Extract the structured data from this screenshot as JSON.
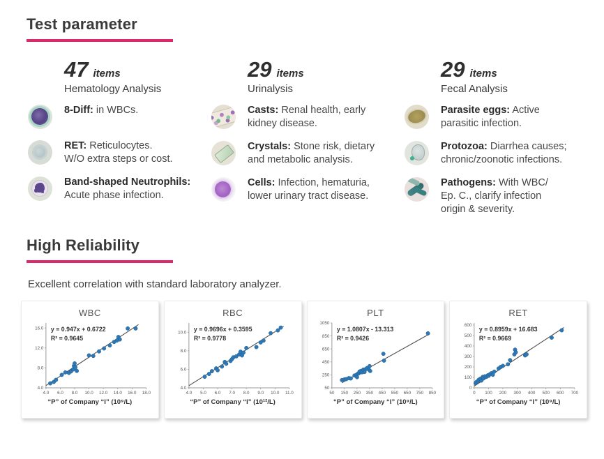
{
  "accent_color": "#DB2A6B",
  "point_color": "#2E78B5",
  "test_parameter": {
    "title": "Test parameter",
    "columns": [
      {
        "count": "47",
        "count_unit": "items",
        "subtitle": "Hematology Analysis",
        "items": [
          {
            "icon": "8diff-cell-icon",
            "term": "8-Diff",
            "desc": "in WBCs."
          },
          {
            "icon": "reticulocyte-cell-icon",
            "term": "RET",
            "desc": "Reticulocytes.\nW/O extra steps or cost."
          },
          {
            "icon": "band-neutrophil-icon",
            "term": "Band-shaped Neutrophils",
            "desc": "\nAcute phase infection."
          }
        ]
      },
      {
        "count": "29",
        "count_unit": "items",
        "subtitle": "Urinalysis",
        "items": [
          {
            "icon": "urinary-cast-icon",
            "term": "Casts",
            "desc": "Renal health, early\nkidney disease."
          },
          {
            "icon": "crystal-icon",
            "term": "Crystals",
            "desc": "Stone risk, dietary\nand metabolic analysis."
          },
          {
            "icon": "urine-cells-icon",
            "term": "Cells",
            "desc": "Infection, hematuria,\nlower urinary tract disease."
          }
        ]
      },
      {
        "count": "29",
        "count_unit": "items",
        "subtitle": "Fecal Analysis",
        "items": [
          {
            "icon": "parasite-egg-icon",
            "term": "Parasite eggs",
            "desc": "Active\nparasitic infection."
          },
          {
            "icon": "protozoa-icon",
            "term": "Protozoa",
            "desc": "Diarrhea causes;\nchronic/zoonotic infections."
          },
          {
            "icon": "pathogen-icon",
            "term": "Pathogens",
            "desc": "With WBC/\nEp. C., clarify infection\norigin & severity."
          }
        ]
      }
    ]
  },
  "high_reliability": {
    "title": "High Reliability",
    "subtitle": "Excellent correlation with standard laboratory analyzer."
  },
  "chart_data": [
    {
      "type": "scatter",
      "name": "WBC",
      "title": "WBC",
      "equation": "y = 0.947x + 0.6722",
      "r_squared": "R² = 0.9645",
      "xlabel": "“P” of Company “I” (10⁹/L)",
      "xlim": [
        4,
        18
      ],
      "ylim": [
        4,
        17
      ],
      "x_ticks": [
        4,
        6,
        8,
        10,
        12,
        14,
        16,
        18
      ],
      "y_ticks": [
        4,
        8,
        12,
        16
      ],
      "tick_decimals": 1,
      "slope": 0.947,
      "intercept": 0.6722,
      "trend_x": [
        4.0,
        16.9
      ],
      "grid": false,
      "legend": false,
      "points": [
        [
          4.6,
          4.9
        ],
        [
          5.1,
          5.2
        ],
        [
          5.4,
          5.6
        ],
        [
          6.2,
          6.6
        ],
        [
          6.7,
          7.1
        ],
        [
          7.2,
          7.0
        ],
        [
          7.5,
          7.3
        ],
        [
          7.8,
          7.7
        ],
        [
          7.9,
          8.4
        ],
        [
          8.0,
          8.9
        ],
        [
          8.1,
          8.1
        ],
        [
          8.3,
          7.4
        ],
        [
          10.0,
          10.5
        ],
        [
          10.6,
          10.4
        ],
        [
          11.4,
          11.3
        ],
        [
          12.1,
          11.9
        ],
        [
          12.9,
          12.5
        ],
        [
          13.5,
          13.2
        ],
        [
          13.9,
          13.5
        ],
        [
          14.1,
          14.2
        ],
        [
          14.3,
          13.7
        ],
        [
          15.4,
          15.9
        ],
        [
          16.5,
          15.9
        ]
      ]
    },
    {
      "type": "scatter",
      "name": "RBC",
      "title": "RBC",
      "equation": "y = 0.9696x + 0.3595",
      "r_squared": "R² = 0.9778",
      "xlabel": "“P” of Company “I” (10¹²/L)",
      "xlim": [
        4,
        11
      ],
      "ylim": [
        4,
        11
      ],
      "x_ticks": [
        4,
        5,
        6,
        7,
        8,
        9,
        10,
        11
      ],
      "y_ticks": [
        4,
        6,
        8,
        10
      ],
      "tick_decimals": 1,
      "slope": 0.9696,
      "intercept": 0.3595,
      "trend_x": [
        4.0,
        10.6
      ],
      "grid": false,
      "legend": false,
      "points": [
        [
          5.1,
          5.2
        ],
        [
          5.4,
          5.5
        ],
        [
          5.6,
          5.8
        ],
        [
          5.9,
          6.1
        ],
        [
          6.0,
          5.9
        ],
        [
          6.3,
          6.3
        ],
        [
          6.5,
          6.8
        ],
        [
          6.6,
          6.6
        ],
        [
          6.9,
          6.9
        ],
        [
          7.0,
          7.1
        ],
        [
          7.1,
          7.3
        ],
        [
          7.3,
          7.4
        ],
        [
          7.5,
          7.6
        ],
        [
          7.6,
          7.9
        ],
        [
          7.7,
          7.5
        ],
        [
          7.8,
          7.8
        ],
        [
          8.0,
          8.3
        ],
        [
          8.7,
          8.4
        ],
        [
          9.0,
          8.9
        ],
        [
          9.2,
          9.1
        ],
        [
          9.7,
          9.9
        ],
        [
          10.2,
          10.2
        ],
        [
          10.4,
          10.5
        ]
      ]
    },
    {
      "type": "scatter",
      "name": "PLT",
      "title": "PLT",
      "equation": "y = 1.0807x - 13.313",
      "r_squared": "R² = 0.9426",
      "xlabel": "“P” of Company “I” (10⁹/L)",
      "xlim": [
        50,
        850
      ],
      "ylim": [
        50,
        1050
      ],
      "x_ticks": [
        50,
        150,
        250,
        350,
        450,
        550,
        650,
        750,
        850
      ],
      "y_ticks": [
        50,
        250,
        450,
        650,
        850,
        1050
      ],
      "tick_decimals": 0,
      "slope": 1.0807,
      "intercept": -13.313,
      "trend_x": [
        130,
        830
      ],
      "grid": false,
      "legend": false,
      "points": [
        [
          130,
          170
        ],
        [
          150,
          180
        ],
        [
          165,
          185
        ],
        [
          185,
          200
        ],
        [
          200,
          195
        ],
        [
          230,
          240
        ],
        [
          245,
          250
        ],
        [
          250,
          215
        ],
        [
          255,
          265
        ],
        [
          265,
          275
        ],
        [
          270,
          300
        ],
        [
          280,
          310
        ],
        [
          290,
          290
        ],
        [
          300,
          330
        ],
        [
          310,
          295
        ],
        [
          320,
          340
        ],
        [
          330,
          355
        ],
        [
          345,
          330
        ],
        [
          350,
          385
        ],
        [
          355,
          310
        ],
        [
          460,
          575
        ],
        [
          465,
          470
        ],
        [
          815,
          890
        ]
      ]
    },
    {
      "type": "scatter",
      "name": "RET",
      "title": "RET",
      "equation": "y = 0.8959x + 16.683",
      "r_squared": "R² = 0.9669",
      "xlabel": "“P” of Company “I” (10⁹/L)",
      "xlim": [
        0,
        700
      ],
      "ylim": [
        0,
        620
      ],
      "x_ticks": [
        0,
        100,
        200,
        300,
        400,
        500,
        600,
        700
      ],
      "y_ticks": [
        0,
        100,
        200,
        300,
        400,
        500,
        600
      ],
      "tick_decimals": 0,
      "slope": 0.8959,
      "intercept": 16.683,
      "trend_x": [
        0,
        625
      ],
      "grid": false,
      "legend": false,
      "points": [
        [
          10,
          45
        ],
        [
          15,
          55
        ],
        [
          25,
          60
        ],
        [
          30,
          75
        ],
        [
          40,
          85
        ],
        [
          50,
          70
        ],
        [
          55,
          95
        ],
        [
          60,
          105
        ],
        [
          65,
          90
        ],
        [
          75,
          110
        ],
        [
          85,
          105
        ],
        [
          95,
          120
        ],
        [
          100,
          115
        ],
        [
          110,
          130
        ],
        [
          120,
          140
        ],
        [
          130,
          125
        ],
        [
          140,
          155
        ],
        [
          170,
          185
        ],
        [
          185,
          200
        ],
        [
          200,
          210
        ],
        [
          235,
          225
        ],
        [
          250,
          265
        ],
        [
          280,
          320
        ],
        [
          285,
          365
        ],
        [
          290,
          340
        ],
        [
          355,
          310
        ],
        [
          365,
          320
        ],
        [
          540,
          480
        ],
        [
          610,
          550
        ]
      ]
    }
  ]
}
